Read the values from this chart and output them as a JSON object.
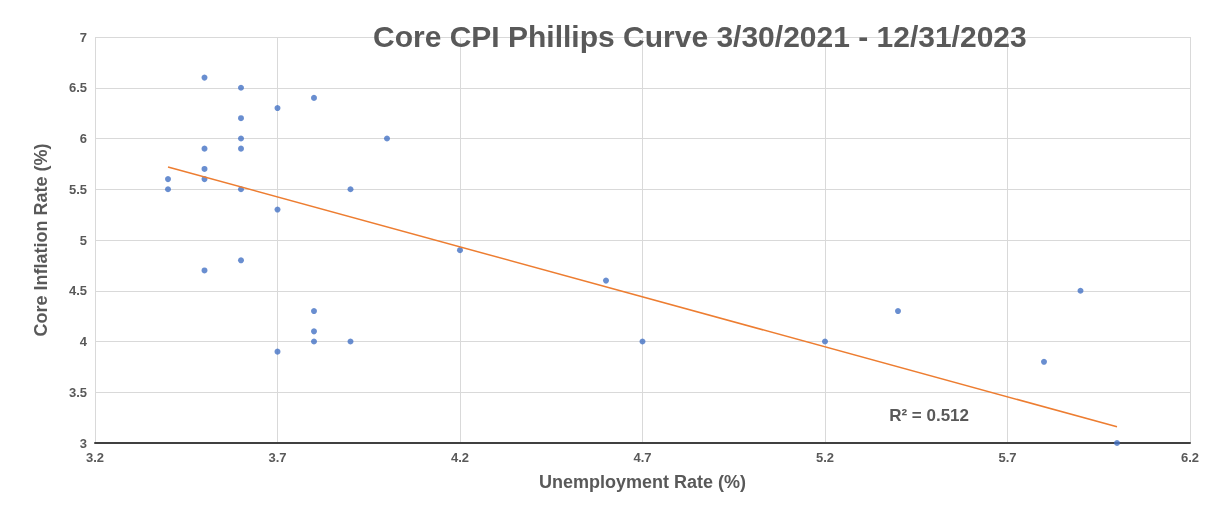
{
  "chart_data": {
    "type": "scatter",
    "title": "Core CPI Phillips Curve 3/30/2021 - 12/31/2023",
    "xlabel": "Unemployment Rate (%)",
    "ylabel": "Core Inflation Rate (%)",
    "xlim": [
      3.2,
      6.2
    ],
    "xticks": [
      3.2,
      3.7,
      4.2,
      4.7,
      5.2,
      5.7,
      6.2
    ],
    "ylim": [
      3,
      7
    ],
    "yticks": [
      3,
      3.5,
      4,
      4.5,
      5,
      5.5,
      6,
      6.5,
      7
    ],
    "grid": true,
    "marker": "circle",
    "annotations": [
      "R² = 0.512"
    ],
    "series": [
      {
        "color": "#4472c4",
        "x": [
          3.4,
          3.4,
          3.5,
          3.5,
          3.5,
          3.5,
          3.5,
          3.6,
          3.6,
          3.6,
          3.6,
          3.6,
          3.6,
          3.7,
          3.7,
          3.7,
          3.8,
          3.8,
          3.8,
          3.8,
          3.9,
          3.9,
          4.0,
          4.2,
          4.6,
          4.7,
          5.2,
          5.4,
          5.8,
          5.9,
          6.0
        ],
        "values": [
          5.6,
          5.5,
          6.6,
          5.9,
          5.7,
          5.6,
          4.7,
          6.5,
          6.2,
          6.0,
          5.9,
          5.5,
          4.8,
          6.3,
          5.3,
          3.9,
          6.4,
          4.3,
          4.1,
          4.0,
          5.5,
          4.0,
          6.0,
          4.9,
          4.6,
          4.0,
          4.0,
          4.3,
          3.8,
          4.5,
          3.0
        ]
      },
      {
        "type": "line",
        "color": "#ed7d31",
        "marker": "none",
        "x": [
          3.4,
          6.0
        ],
        "values": [
          5.72,
          3.16
        ]
      }
    ]
  }
}
